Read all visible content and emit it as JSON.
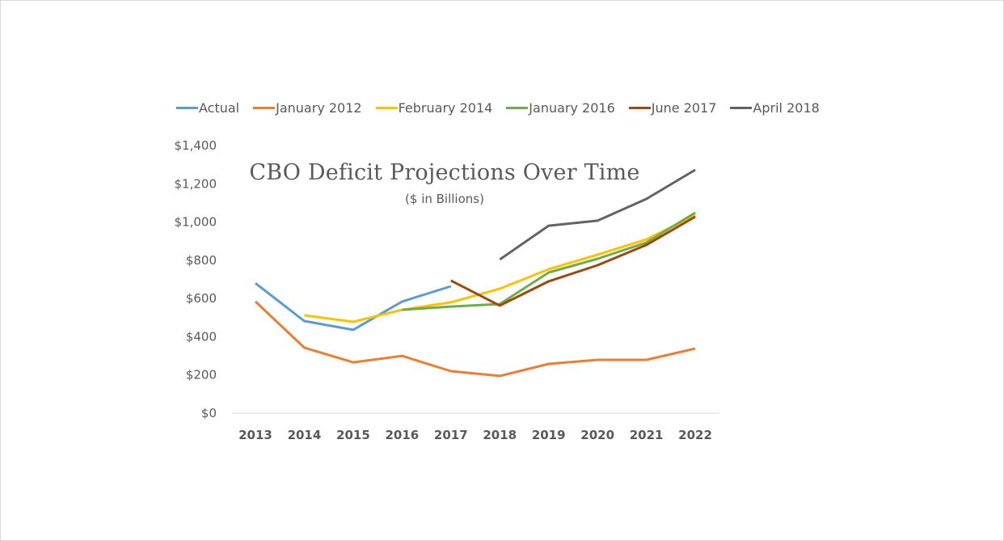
{
  "chart_data": {
    "type": "line",
    "title": "CBO Deficit Projections Over Time",
    "subtitle": "($ in Billions)",
    "xlabel": "",
    "ylabel": "",
    "categories": [
      "2013",
      "2014",
      "2015",
      "2016",
      "2017",
      "2018",
      "2019",
      "2020",
      "2021",
      "2022"
    ],
    "ylim": [
      0,
      1400
    ],
    "yticks": [
      0,
      200,
      400,
      600,
      800,
      1000,
      1200,
      1400
    ],
    "ytick_labels": [
      "$0",
      "$200",
      "$400",
      "$600",
      "$800",
      "$1,000",
      "$1,200",
      "$1,400"
    ],
    "grid": false,
    "legend_position": "top",
    "series": [
      {
        "name": "Actual",
        "color": "#5b9bd5",
        "values": [
          680,
          482,
          436,
          584,
          664,
          null,
          null,
          null,
          null,
          null
        ]
      },
      {
        "name": "January 2012",
        "color": "#ed7d31",
        "values": [
          584,
          343,
          266,
          300,
          220,
          195,
          258,
          279,
          279,
          338
        ]
      },
      {
        "name": "February 2014",
        "color": "#ffc000",
        "values": [
          null,
          512,
          478,
          541,
          580,
          651,
          753,
          829,
          909,
          1036
        ]
      },
      {
        "name": "January 2016",
        "color": "#70ad47",
        "values": [
          null,
          null,
          null,
          541,
          558,
          571,
          736,
          808,
          893,
          1049
        ]
      },
      {
        "name": "June 2017",
        "color": "#9e480e",
        "values": [
          null,
          null,
          null,
          null,
          694,
          563,
          690,
          774,
          880,
          1028
        ]
      },
      {
        "name": "April 2018",
        "color": "#636363",
        "values": [
          null,
          null,
          null,
          null,
          null,
          804,
          981,
          1007,
          1121,
          1273
        ]
      }
    ]
  }
}
